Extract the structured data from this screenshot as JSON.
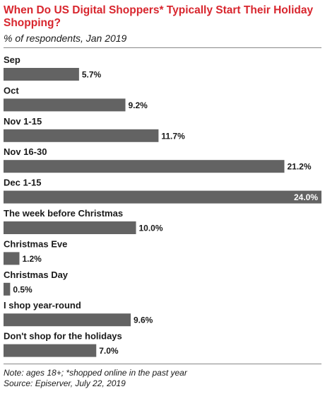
{
  "chart_data": {
    "type": "bar",
    "orientation": "horizontal",
    "title": "When Do US Digital Shoppers* Typically Start Their Holiday Shopping?",
    "subtitle": "% of respondents, Jan 2019",
    "categories": [
      "Sep",
      "Oct",
      "Nov 1-15",
      "Nov 16-30",
      "Dec 1-15",
      "The week before Christmas",
      "Christmas Eve",
      "Christmas Day",
      "I shop year-round",
      "Don't shop for the holidays"
    ],
    "values": [
      5.7,
      9.2,
      11.7,
      21.2,
      24.0,
      10.0,
      1.2,
      0.5,
      9.6,
      7.0
    ],
    "value_labels": [
      "5.7%",
      "9.2%",
      "11.7%",
      "21.2%",
      "24.0%",
      "10.0%",
      "1.2%",
      "0.5%",
      "9.6%",
      "7.0%"
    ],
    "xlim": [
      0,
      24.0
    ],
    "bar_color": "#636363",
    "grid": false,
    "legend": false
  },
  "footer": {
    "note": "Note: ages 18+; *shopped online in the past year",
    "source": "Source: Episerver, July 22, 2019"
  },
  "colors": {
    "title": "#d8262e",
    "bar": "#636363"
  }
}
